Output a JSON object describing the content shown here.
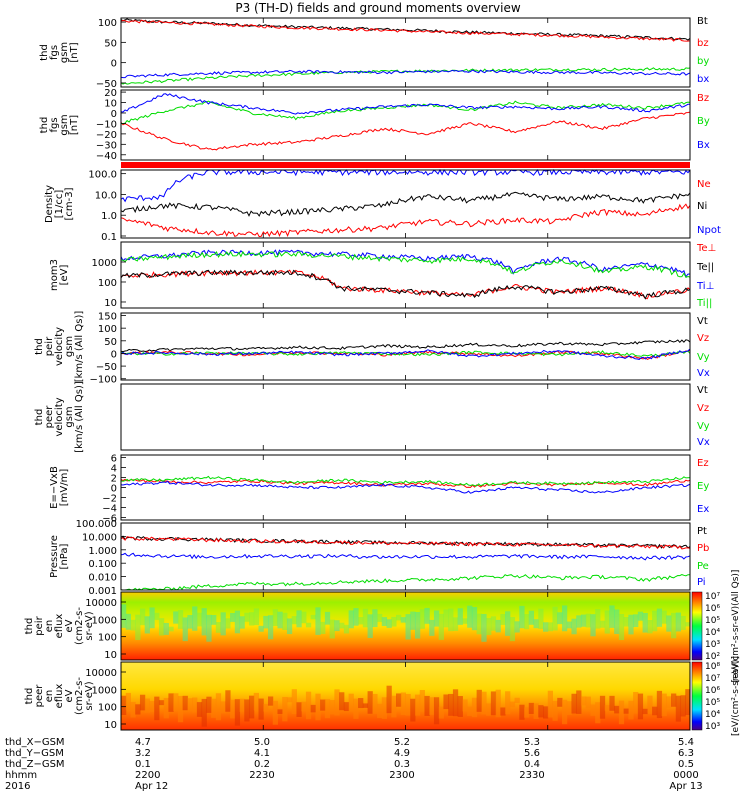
{
  "title": "P3 (TH-D) fields and ground moments overview",
  "chart_data": [
    {
      "type": "line",
      "ylabel": [
        "thd",
        "fgs",
        "gsm",
        "[nT]"
      ],
      "yticks": [
        "100",
        "50",
        "0",
        "−50"
      ],
      "ylim": [
        -60,
        110
      ],
      "series": [
        {
          "name": "Bt",
          "color": "#000000",
          "values": [
            105,
            100,
            97,
            92,
            88,
            85,
            82,
            79,
            75,
            72,
            69,
            66,
            62,
            58
          ]
        },
        {
          "name": "bz",
          "color": "#ff0000",
          "values": [
            103,
            99,
            95,
            90,
            86,
            83,
            80,
            76,
            73,
            70,
            67,
            63,
            59,
            55
          ]
        },
        {
          "name": "by",
          "color": "#00dd00",
          "values": [
            -52,
            -45,
            -38,
            -32,
            -28,
            -24,
            -22,
            -20,
            -19,
            -18,
            -17,
            -17,
            -16,
            -16
          ]
        },
        {
          "name": "bx",
          "color": "#0000ff",
          "values": [
            -35,
            -30,
            -26,
            -24,
            -22,
            -23,
            -24,
            -22,
            -21,
            -23,
            -24,
            -25,
            -27,
            -28
          ]
        }
      ]
    },
    {
      "type": "line",
      "ylabel": [
        "thd",
        "fgs",
        "gsm",
        "[nT]"
      ],
      "yticks": [
        "20",
        "10",
        "0",
        "−10",
        "−20",
        "−30",
        "−40"
      ],
      "ylim": [
        -45,
        22
      ],
      "series": [
        {
          "name": "Bz",
          "color": "#ff0000",
          "values": [
            -10,
            -25,
            -35,
            -30,
            -28,
            -22,
            -15,
            -20,
            -10,
            -18,
            -8,
            -15,
            -5,
            0
          ]
        },
        {
          "name": "By",
          "color": "#00dd00",
          "values": [
            -10,
            2,
            10,
            0,
            -5,
            2,
            5,
            8,
            3,
            10,
            5,
            8,
            5,
            10
          ]
        },
        {
          "name": "Bx",
          "color": "#0000ff",
          "values": [
            0,
            18,
            10,
            5,
            0,
            3,
            6,
            8,
            5,
            6,
            4,
            6,
            2,
            8
          ]
        }
      ]
    },
    {
      "type": "line",
      "yscale": "log",
      "ylabel": [
        "Density",
        "[1/cc]",
        "[cm-3]"
      ],
      "yticks": [
        "100.0",
        "10.0",
        "1.0",
        "0.1"
      ],
      "ylim": [
        0.08,
        150
      ],
      "series": [
        {
          "name": "Ne",
          "color": "#ff0000",
          "values": [
            0.6,
            0.25,
            0.15,
            0.12,
            0.15,
            0.2,
            0.25,
            0.5,
            0.4,
            0.6,
            0.5,
            1.5,
            1.0,
            3.0
          ]
        },
        {
          "name": "Ni",
          "color": "#000000",
          "values": [
            1.5,
            3.0,
            2.5,
            1.2,
            1.5,
            2.0,
            3.0,
            8.0,
            5.0,
            10.0,
            6.0,
            8.0,
            5.0,
            10.0
          ]
        },
        {
          "name": "Npot",
          "color": "#0000ff",
          "values": [
            6,
            8,
            120,
            120,
            120,
            120,
            120,
            120,
            120,
            120,
            120,
            120,
            120,
            120
          ]
        }
      ]
    },
    {
      "type": "line",
      "yscale": "log",
      "ylabel": [
        "mom3",
        "[eV]"
      ],
      "yticks": [
        "1000",
        "100",
        "10"
      ],
      "ylim": [
        5,
        10000
      ],
      "series": [
        {
          "name": "Te⊥",
          "color": "#ff0000",
          "values": [
            200,
            250,
            300,
            300,
            300,
            50,
            40,
            30,
            20,
            60,
            30,
            50,
            20,
            40
          ]
        },
        {
          "name": "Te||",
          "color": "#000000",
          "values": [
            200,
            250,
            300,
            300,
            300,
            50,
            40,
            30,
            20,
            60,
            30,
            50,
            20,
            40
          ]
        },
        {
          "name": "Ti⊥",
          "color": "#0000ff",
          "values": [
            1500,
            2000,
            3000,
            3000,
            3000,
            2500,
            2000,
            1500,
            2000,
            300,
            1500,
            400,
            800,
            200
          ]
        },
        {
          "name": "Ti||",
          "color": "#00dd00",
          "values": [
            1200,
            1800,
            2500,
            2500,
            2500,
            2000,
            1500,
            1200,
            1500,
            250,
            1200,
            300,
            600,
            150
          ]
        }
      ]
    },
    {
      "type": "line",
      "ylabel": [
        "thd",
        "peir",
        "velocity",
        "gsm",
        "[km/s (All Qs)]"
      ],
      "yticks": [
        "150",
        "100",
        "50",
        "0",
        "−50",
        "−100"
      ],
      "ylim": [
        -105,
        160
      ],
      "series": [
        {
          "name": "Vt",
          "color": "#000000",
          "values": [
            10,
            15,
            20,
            18,
            25,
            20,
            30,
            25,
            35,
            30,
            40,
            35,
            45,
            50
          ]
        },
        {
          "name": "Vz",
          "color": "#ff0000",
          "values": [
            0,
            5,
            0,
            -5,
            5,
            0,
            -5,
            5,
            0,
            -10,
            5,
            0,
            -20,
            10
          ]
        },
        {
          "name": "Vy",
          "color": "#00dd00",
          "values": [
            0,
            -2,
            2,
            0,
            -3,
            3,
            0,
            -5,
            5,
            0,
            -5,
            5,
            -10,
            5
          ]
        },
        {
          "name": "Vx",
          "color": "#0000ff",
          "values": [
            0,
            3,
            -3,
            0,
            5,
            -5,
            0,
            10,
            -10,
            0,
            10,
            -10,
            -20,
            15
          ]
        }
      ]
    },
    {
      "type": "line",
      "ylabel": [
        "thd",
        "peer",
        "velocity",
        "gsm",
        "[km/s (All Qs)]"
      ],
      "yticks": [],
      "ylim": [
        -105,
        160
      ],
      "series": [
        {
          "name": "Vt",
          "color": "#000000",
          "values": []
        },
        {
          "name": "Vz",
          "color": "#ff0000",
          "values": []
        },
        {
          "name": "Vy",
          "color": "#00dd00",
          "values": []
        },
        {
          "name": "Vx",
          "color": "#0000ff",
          "values": []
        }
      ]
    },
    {
      "type": "line",
      "ylabel": [
        "E=−VxB",
        "[mV/m]"
      ],
      "yticks": [
        "6",
        "4",
        "2",
        "0",
        "−2",
        "−4",
        "−6"
      ],
      "ylim": [
        -6.5,
        6.5
      ],
      "series": [
        {
          "name": "Ez",
          "color": "#ff0000",
          "values": [
            1.5,
            1.2,
            1.0,
            1.3,
            0.8,
            1.0,
            0.5,
            0.8,
            0.2,
            0.8,
            0.5,
            1.0,
            0.5,
            1.5
          ]
        },
        {
          "name": "Ey",
          "color": "#00dd00",
          "values": [
            1.5,
            1.5,
            2.0,
            1.5,
            1.0,
            1.5,
            1.0,
            1.2,
            0.5,
            1.0,
            0.8,
            1.0,
            1.2,
            2.0
          ]
        },
        {
          "name": "Ex",
          "color": "#0000ff",
          "values": [
            0.5,
            1.0,
            0.5,
            0.5,
            0.0,
            0.0,
            0.5,
            0.0,
            -1.0,
            0.0,
            -0.5,
            -1.0,
            0.0,
            0.5
          ]
        }
      ]
    },
    {
      "type": "line",
      "yscale": "log",
      "ylabel": [
        "Pressure",
        "[nPa]"
      ],
      "yticks": [
        "100.000",
        "10.000",
        "1.000",
        "0.100",
        "0.010",
        "0.001"
      ],
      "ylim": [
        0.001,
        100
      ],
      "series": [
        {
          "name": "Pt",
          "color": "#000000",
          "values": [
            8,
            7,
            6,
            5,
            4.5,
            4,
            3.5,
            3.2,
            3,
            2.8,
            2.5,
            2.2,
            2,
            1.8
          ]
        },
        {
          "name": "Pb",
          "color": "#ff0000",
          "values": [
            7.5,
            6.5,
            5.5,
            4.6,
            4.1,
            3.7,
            3.2,
            3,
            2.8,
            2.6,
            2.3,
            2,
            1.8,
            1.6
          ]
        },
        {
          "name": "Pe",
          "color": "#00dd00",
          "values": [
            0.001,
            0.0012,
            0.002,
            0.003,
            0.003,
            0.004,
            0.005,
            0.006,
            0.008,
            0.012,
            0.008,
            0.01,
            0.006,
            0.012
          ]
        },
        {
          "name": "Pi",
          "color": "#0000ff",
          "values": [
            0.5,
            0.35,
            0.3,
            0.35,
            0.35,
            0.35,
            0.3,
            0.32,
            0.3,
            0.35,
            0.3,
            0.32,
            0.25,
            0.3
          ]
        }
      ]
    },
    {
      "type": "heatmap",
      "ylabel": [
        "thd",
        "peir",
        "en",
        "eflux",
        "eV",
        "(cm2-s-",
        "sr-eV)"
      ],
      "yticks": [
        "10000",
        "1000",
        "100",
        "10"
      ],
      "colorbar_ticks": [
        "10⁷",
        "10⁶",
        "10⁵",
        "10⁴",
        "10³",
        "10²"
      ],
      "colorbar_label": "[eV/(cm²-s-sr-eV)(All Qs)]"
    },
    {
      "type": "heatmap",
      "ylabel": [
        "thd",
        "peer",
        "en",
        "eflux",
        "eV",
        "(cm2-s-",
        "sr-eV)"
      ],
      "yticks": [
        "10000",
        "1000",
        "100",
        "10"
      ],
      "colorbar_ticks": [
        "10⁸",
        "10⁷",
        "10⁶",
        "10⁵",
        "10⁴",
        "10³"
      ],
      "colorbar_label": "[eV/(cm²-s-sr-eV)]"
    }
  ],
  "footer": {
    "rows": [
      {
        "label": "thd_X−GSM",
        "values": [
          "4.7",
          "5.0",
          "5.2",
          "5.3",
          "5.4"
        ]
      },
      {
        "label": "thd_Y−GSM",
        "values": [
          "3.2",
          "4.1",
          "4.9",
          "5.6",
          "6.3"
        ]
      },
      {
        "label": "thd_Z−GSM",
        "values": [
          "0.1",
          "0.2",
          "0.3",
          "0.4",
          "0.5"
        ]
      },
      {
        "label": "hhmm",
        "values": [
          "2200",
          "2230",
          "2300",
          "2330",
          "0000"
        ]
      },
      {
        "label": "2016",
        "values": [
          "Apr 12",
          "",
          "",
          "",
          "Apr 13"
        ]
      }
    ]
  }
}
